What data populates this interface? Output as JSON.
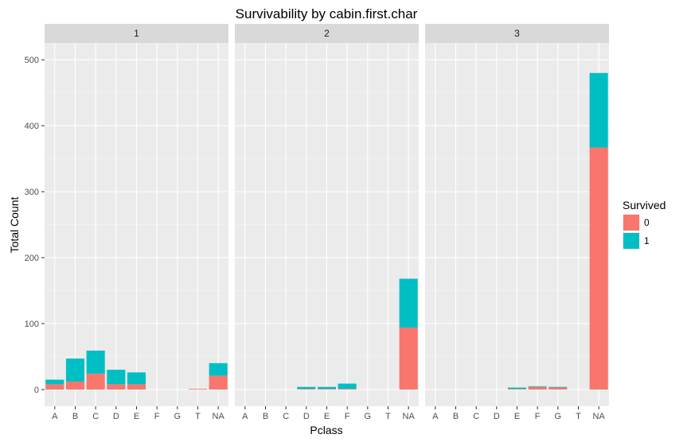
{
  "chart_data": {
    "type": "bar",
    "stacked": true,
    "title": "Survivability by cabin.first.char",
    "xlabel": "Pclass",
    "ylabel": "Total Count",
    "ylim": [
      0,
      525
    ],
    "yticks": [
      0,
      100,
      200,
      300,
      400,
      500
    ],
    "categories": [
      "A",
      "B",
      "C",
      "D",
      "E",
      "F",
      "G",
      "T",
      "NA"
    ],
    "legend": {
      "title": "Survived",
      "position": "right",
      "entries": [
        {
          "label": "0",
          "color": "#F8766D"
        },
        {
          "label": "1",
          "color": "#00BFC4"
        }
      ]
    },
    "panels": [
      {
        "label": "1",
        "series": [
          {
            "name": "0",
            "values": [
              8,
              12,
              24,
              8,
              8,
              0,
              0,
              1,
              21
            ]
          },
          {
            "name": "1",
            "values": [
              7,
              35,
              35,
              22,
              18,
              0,
              0,
              0,
              19
            ]
          }
        ]
      },
      {
        "label": "2",
        "series": [
          {
            "name": "0",
            "values": [
              0,
              0,
              0,
              1,
              1,
              1,
              0,
              0,
              94
            ]
          },
          {
            "name": "1",
            "values": [
              0,
              0,
              0,
              3,
              3,
              8,
              0,
              0,
              74
            ]
          }
        ]
      },
      {
        "label": "3",
        "series": [
          {
            "name": "0",
            "values": [
              0,
              0,
              0,
              0,
              1,
              4,
              3,
              0,
              367
            ]
          },
          {
            "name": "1",
            "values": [
              0,
              0,
              0,
              0,
              2,
              1,
              1,
              0,
              113
            ]
          }
        ]
      }
    ],
    "grid": true
  }
}
